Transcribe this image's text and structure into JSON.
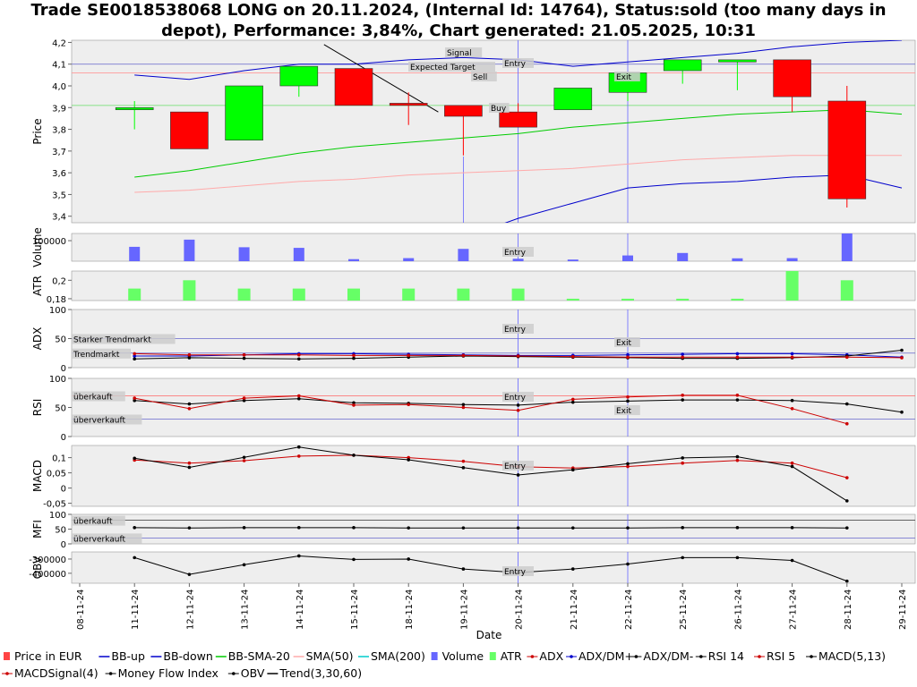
{
  "title_line1": "Trade SE0018538068 LONG on 20.11.2024, (Internal Id: 14764), Status:sold (too many days in",
  "title_line2": "depot), Performance: 3,84%, Chart generated: 21.05.2025, 10:31",
  "xlabel": "Date",
  "colors": {
    "up": "#00ff00",
    "down": "#ff0000",
    "bb": "#0000cc",
    "sma20": "#00cc00",
    "sma50": "#ffaaaa",
    "volume": "#6666ff",
    "atr": "#66ff66",
    "panel_bg": "#eeeeee"
  },
  "annotations": {
    "signal": "Signal",
    "expected_target": "Expected Target",
    "entry": "Entry",
    "exit": "Exit",
    "sell": "Sell",
    "buy": "Buy",
    "starker_trendmarkt": "Starker Trendmarkt",
    "trendmarkt": "Trendmarkt",
    "ueberkauft": "überkauft",
    "ueberverkauft": "überverkauft"
  },
  "legend": [
    {
      "label": "Price in EUR",
      "color": "#ff4444",
      "kind": "box"
    },
    {
      "label": "BB-up",
      "color": "#0000cc",
      "kind": "line"
    },
    {
      "label": "BB-down",
      "color": "#0000cc",
      "kind": "line"
    },
    {
      "label": "BB-SMA-20",
      "color": "#00cc00",
      "kind": "line"
    },
    {
      "label": "SMA(50)",
      "color": "#ffaaaa",
      "kind": "line"
    },
    {
      "label": "SMA(200)",
      "color": "#00cccc",
      "kind": "line"
    },
    {
      "label": "Volume",
      "color": "#6666ff",
      "kind": "box"
    },
    {
      "label": "ATR",
      "color": "#66ff66",
      "kind": "box"
    },
    {
      "label": "ADX",
      "color": "#cc0000",
      "kind": "dot"
    },
    {
      "label": "ADX/DM+",
      "color": "#0000cc",
      "kind": "dot"
    },
    {
      "label": "ADX/DM-",
      "color": "#000000",
      "kind": "dot"
    },
    {
      "label": "RSI 14",
      "color": "#000000",
      "kind": "dot"
    },
    {
      "label": "RSI 5",
      "color": "#cc0000",
      "kind": "dot"
    },
    {
      "label": "MACD(5,13)",
      "color": "#000000",
      "kind": "dot"
    },
    {
      "label": "MACDSignal(4)",
      "color": "#cc0000",
      "kind": "dot"
    },
    {
      "label": "Money Flow Index",
      "color": "#000000",
      "kind": "dot"
    },
    {
      "label": "OBV",
      "color": "#000000",
      "kind": "dot"
    },
    {
      "label": "Trend(3,30,60)",
      "color": "#000000",
      "kind": "line"
    }
  ],
  "chart_data": {
    "type": "candlestick",
    "dates": [
      "08-11-24",
      "11-11-24",
      "12-11-24",
      "13-11-24",
      "14-11-24",
      "15-11-24",
      "18-11-24",
      "19-11-24",
      "20-11-24",
      "21-11-24",
      "22-11-24",
      "25-11-24",
      "26-11-24",
      "27-11-24",
      "28-11-24",
      "29-11-24"
    ],
    "entry_date": "20-11-24",
    "exit_date": "22-11-24",
    "price": {
      "ylabel": "Price",
      "ylim": [
        3.37,
        4.21
      ],
      "ticks": [
        "3,4",
        "3,5",
        "3,6",
        "3,7",
        "3,8",
        "3,9",
        "4,0",
        "4,1",
        "4,2"
      ],
      "tick_values": [
        3.4,
        3.5,
        3.6,
        3.7,
        3.8,
        3.9,
        4.0,
        4.1,
        4.2
      ],
      "candles": [
        {
          "date": "11-11-24",
          "open": 3.89,
          "high": 3.93,
          "low": 3.8,
          "close": 3.9
        },
        {
          "date": "12-11-24",
          "open": 3.88,
          "high": 3.88,
          "low": 3.71,
          "close": 3.71
        },
        {
          "date": "13-11-24",
          "open": 3.75,
          "high": 4.0,
          "low": 3.75,
          "close": 4.0
        },
        {
          "date": "14-11-24",
          "open": 4.0,
          "high": 4.09,
          "low": 3.95,
          "close": 4.09
        },
        {
          "date": "15-11-24",
          "open": 4.08,
          "high": 4.08,
          "low": 3.91,
          "close": 3.91
        },
        {
          "date": "18-11-24",
          "open": 3.92,
          "high": 3.97,
          "low": 3.82,
          "close": 3.91
        },
        {
          "date": "19-11-24",
          "open": 3.91,
          "high": 3.91,
          "low": 3.68,
          "close": 3.86
        },
        {
          "date": "20-11-24",
          "open": 3.88,
          "high": 3.92,
          "low": 3.81,
          "close": 3.81
        },
        {
          "date": "21-11-24",
          "open": 3.89,
          "high": 3.99,
          "low": 3.89,
          "close": 3.99
        },
        {
          "date": "22-11-24",
          "open": 3.97,
          "high": 4.06,
          "low": 3.93,
          "close": 4.06
        },
        {
          "date": "25-11-24",
          "open": 4.07,
          "high": 4.12,
          "low": 4.01,
          "close": 4.12
        },
        {
          "date": "26-11-24",
          "open": 4.11,
          "high": 4.12,
          "low": 3.98,
          "close": 4.12
        },
        {
          "date": "27-11-24",
          "open": 4.12,
          "high": 4.12,
          "low": 3.88,
          "close": 3.95
        },
        {
          "date": "28-11-24",
          "open": 3.93,
          "high": 4.0,
          "low": 3.44,
          "close": 3.48
        }
      ],
      "bb_up": [
        4.05,
        4.03,
        4.07,
        4.1,
        4.1,
        4.12,
        4.13,
        4.12,
        4.09,
        4.11,
        4.13,
        4.15,
        4.18,
        4.2,
        4.21
      ],
      "bb_down": [
        3.3,
        3.3,
        3.3,
        3.3,
        3.3,
        3.3,
        3.3,
        3.39,
        3.46,
        3.53,
        3.55,
        3.56,
        3.58,
        3.59,
        3.53
      ],
      "bb_sma20": [
        3.58,
        3.61,
        3.65,
        3.69,
        3.72,
        3.74,
        3.76,
        3.78,
        3.81,
        3.83,
        3.85,
        3.87,
        3.88,
        3.89,
        3.87
      ],
      "sma50": [
        3.51,
        3.52,
        3.54,
        3.56,
        3.57,
        3.59,
        3.6,
        3.61,
        3.62,
        3.64,
        3.66,
        3.67,
        3.68,
        3.68,
        3.68
      ],
      "hlines": [
        4.1,
        4.06,
        3.91
      ],
      "trend_line": [
        {
          "date": "14-11-24",
          "value": 4.19
        },
        {
          "date": "19-11-24",
          "value": 3.88
        }
      ]
    },
    "volume": {
      "ylabel": "Volume",
      "tick": "100000",
      "tick_value": 100000,
      "ylim": [
        0,
        135000
      ],
      "values": [
        70000,
        105000,
        68000,
        65000,
        10000,
        15000,
        60000,
        12000,
        8000,
        28000,
        40000,
        14000,
        15000,
        140000
      ]
    },
    "atr": {
      "ylabel": "ATR",
      "ticks": [
        "0,18",
        "0,2"
      ],
      "tick_values": [
        0.18,
        0.2
      ],
      "ylim": [
        0.178,
        0.21
      ],
      "values": [
        0.191,
        0.2,
        0.191,
        0.191,
        0.191,
        0.191,
        0.191,
        0.191,
        0.18,
        0.18,
        0.18,
        0.18,
        0.212,
        0.2
      ]
    },
    "adx": {
      "ylabel": "ADX",
      "ticks": [
        "0",
        "50",
        "100"
      ],
      "tick_values": [
        0,
        50,
        100
      ],
      "ylim": [
        0,
        100
      ],
      "levels": [
        50,
        25
      ],
      "adx": [
        24,
        22,
        22,
        22,
        21,
        21,
        21,
        20,
        19,
        18,
        18,
        18,
        18,
        18,
        17
      ],
      "dm_plus": [
        20,
        20,
        22,
        24,
        24,
        23,
        22,
        21,
        21,
        22,
        23,
        24,
        24,
        22,
        18
      ],
      "dm_minus": [
        15,
        17,
        16,
        15,
        16,
        18,
        20,
        19,
        18,
        17,
        16,
        16,
        17,
        20,
        30
      ]
    },
    "rsi": {
      "ylabel": "RSI",
      "ticks": [
        "0",
        "50",
        "100"
      ],
      "tick_values": [
        0,
        50,
        100
      ],
      "ylim": [
        0,
        100
      ],
      "levels": [
        70,
        30
      ],
      "rsi14": [
        62,
        56,
        62,
        65,
        58,
        57,
        55,
        54,
        59,
        61,
        63,
        63,
        62,
        56,
        42
      ],
      "rsi5": [
        66,
        48,
        66,
        70,
        54,
        55,
        50,
        45,
        64,
        68,
        71,
        71,
        48,
        22
      ]
    },
    "macd": {
      "ylabel": "MACD",
      "ticks": [
        "-0,05",
        "0",
        "0,05",
        "0,1"
      ],
      "tick_values": [
        -0.05,
        0,
        0.05,
        0.1
      ],
      "ylim": [
        -0.06,
        0.14
      ],
      "macd": [
        0.098,
        0.068,
        0.101,
        0.135,
        0.108,
        0.093,
        0.067,
        0.043,
        0.06,
        0.08,
        0.099,
        0.103,
        0.071,
        -0.042
      ],
      "signal": [
        0.092,
        0.082,
        0.09,
        0.105,
        0.108,
        0.1,
        0.088,
        0.07,
        0.066,
        0.071,
        0.082,
        0.091,
        0.082,
        0.034
      ]
    },
    "mfi": {
      "ylabel": "MFI",
      "ticks": [
        "0",
        "50",
        "100"
      ],
      "tick_values": [
        0,
        50,
        100
      ],
      "ylim": [
        0,
        100
      ],
      "levels": [
        80,
        20
      ],
      "values": [
        55,
        54,
        55,
        55,
        55,
        54,
        54,
        54,
        54,
        54,
        55,
        55,
        55,
        54
      ]
    },
    "obv": {
      "ylabel": "OBV",
      "ticks": [
        "-400000",
        "-300000"
      ],
      "tick_values": [
        -400000,
        -300000
      ],
      "ylim": [
        -470000,
        -250000
      ],
      "values": [
        -290000,
        -408000,
        -340000,
        -278000,
        -303000,
        -300000,
        -370000,
        -395000,
        -370000,
        -335000,
        -290000,
        -290000,
        -310000,
        -455000
      ]
    }
  }
}
